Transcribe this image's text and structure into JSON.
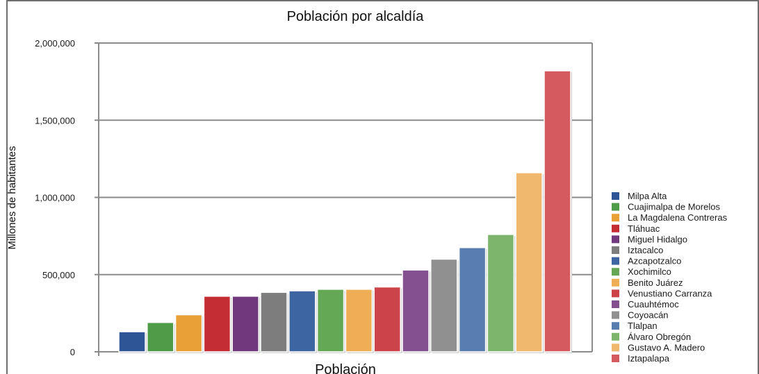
{
  "chart_data": {
    "type": "bar",
    "title": "Población por alcaldía",
    "xlabel": "Población",
    "ylabel": "Millones de habitantes",
    "ylim": [
      0,
      2000000
    ],
    "yticks": [
      0,
      500000,
      1000000,
      1500000,
      2000000
    ],
    "ytick_labels": [
      "0",
      "500,000",
      "1,000,000",
      "1,500,000",
      "2,000,000"
    ],
    "grid": true,
    "legend_position": "right",
    "series": [
      {
        "name": "Milpa Alta",
        "value": 130000,
        "color": "#2e5596"
      },
      {
        "name": "Cuajimalpa de Morelos",
        "value": 190000,
        "color": "#4e9b48"
      },
      {
        "name": "La Magdalena Contreras",
        "value": 240000,
        "color": "#e9a037"
      },
      {
        "name": "Tláhuac",
        "value": 360000,
        "color": "#c42e33"
      },
      {
        "name": "Miguel Hidalgo",
        "value": 360000,
        "color": "#70397d"
      },
      {
        "name": "Iztacalco",
        "value": 385000,
        "color": "#7d7d7d"
      },
      {
        "name": "Azcapotzalco",
        "value": 395000,
        "color": "#3c65a1"
      },
      {
        "name": "Xochimilco",
        "value": 405000,
        "color": "#64a856"
      },
      {
        "name": "Benito Juárez",
        "value": 405000,
        "color": "#efae55"
      },
      {
        "name": "Venustiano Carranza",
        "value": 420000,
        "color": "#cc444a"
      },
      {
        "name": "Cuauhtémoc",
        "value": 530000,
        "color": "#84508f"
      },
      {
        "name": "Coyoacán",
        "value": 600000,
        "color": "#909090"
      },
      {
        "name": "Tlalpan",
        "value": 675000,
        "color": "#587eb0"
      },
      {
        "name": "Álvaro Obregón",
        "value": 760000,
        "color": "#7db56c"
      },
      {
        "name": "Gustavo A. Madero",
        "value": 1160000,
        "color": "#f0b86e"
      },
      {
        "name": "Iztapalapa",
        "value": 1820000,
        "color": "#d45a5f"
      }
    ]
  }
}
